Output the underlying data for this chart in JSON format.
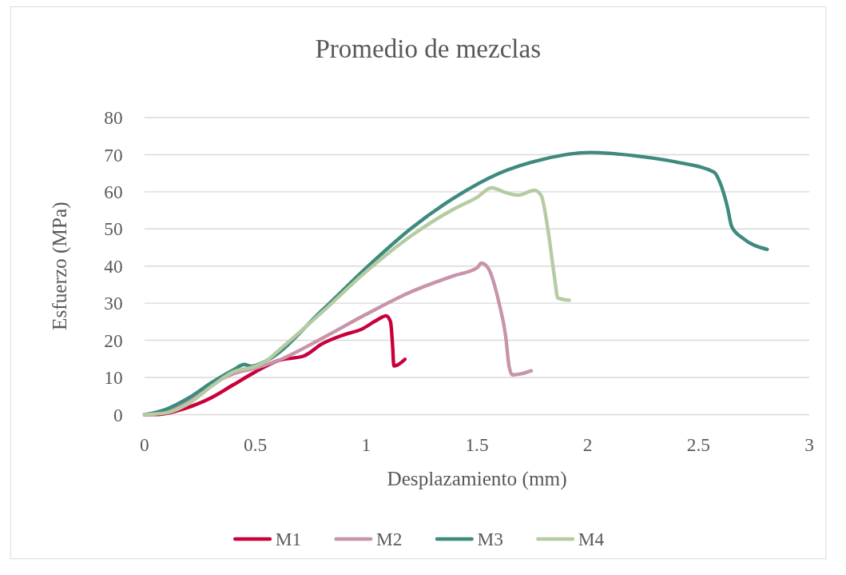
{
  "chart_data": {
    "type": "line",
    "title": "Promedio de mezclas",
    "xlabel": "Desplazamiento (mm)",
    "ylabel": "Esfuerzo (MPa)",
    "xlim": [
      0,
      3
    ],
    "xticks": [
      0,
      0.5,
      1,
      1.5,
      2,
      2.5,
      3
    ],
    "ylim": [
      0,
      80
    ],
    "yticks": [
      0,
      10,
      20,
      30,
      40,
      50,
      60,
      70,
      80
    ],
    "grid": "y",
    "legend": "bottom",
    "marker": "none",
    "line_style": "solid",
    "series": [
      {
        "name": "M1",
        "color": "#c8003c",
        "x": [
          0,
          0.05,
          0.2,
          0.3,
          0.4,
          0.5,
          0.6,
          0.72,
          0.8,
          0.9,
          0.98,
          1.05,
          1.09,
          1.11,
          1.12,
          1.125,
          1.14,
          1.175
        ],
        "values": [
          0,
          0,
          2,
          4.5,
          8,
          11.5,
          14.5,
          15.8,
          19,
          21.5,
          23,
          25.5,
          26.6,
          25,
          18,
          13.1,
          13.3,
          14.9
        ]
      },
      {
        "name": "M2",
        "color": "#c894ab",
        "x": [
          0,
          0.1,
          0.2,
          0.3,
          0.4,
          0.5,
          0.6,
          0.8,
          1,
          1.2,
          1.4,
          1.5,
          1.52,
          1.55,
          1.6,
          1.63,
          1.645,
          1.66,
          1.7,
          1.745
        ],
        "values": [
          0,
          1,
          4,
          8,
          11,
          12.5,
          14.5,
          20.5,
          27,
          33,
          37.5,
          39.5,
          40.8,
          39.5,
          30,
          21,
          13,
          10.7,
          11,
          11.8
        ]
      },
      {
        "name": "M3",
        "color": "#3e8a7e",
        "x": [
          0,
          0.1,
          0.2,
          0.3,
          0.4,
          0.45,
          0.48,
          0.55,
          0.8,
          1,
          1.2,
          1.4,
          1.6,
          1.8,
          2.01,
          2.2,
          2.4,
          2.57,
          2.6,
          2.63,
          2.65,
          2.7,
          2.81
        ],
        "values": [
          0,
          1.5,
          4.5,
          8.5,
          12,
          13.5,
          13,
          14.5,
          28,
          39.5,
          50,
          58.5,
          65,
          68.8,
          70.6,
          69.8,
          68,
          65.3,
          62,
          56,
          50.6,
          47.5,
          44.5
        ]
      },
      {
        "name": "M4",
        "color": "#b5cca3",
        "x": [
          0,
          0.1,
          0.2,
          0.3,
          0.4,
          0.5,
          0.55,
          0.6,
          0.8,
          1,
          1.2,
          1.4,
          1.5,
          1.567,
          1.62,
          1.686,
          1.76,
          1.79,
          1.82,
          1.85,
          1.865,
          1.917
        ],
        "values": [
          0,
          0.5,
          3,
          7.5,
          11.5,
          13,
          14.5,
          17,
          27.5,
          38.5,
          48,
          55.5,
          58.5,
          61.1,
          60,
          59.1,
          60.4,
          59,
          50,
          37,
          31.4,
          30.8
        ]
      }
    ]
  }
}
